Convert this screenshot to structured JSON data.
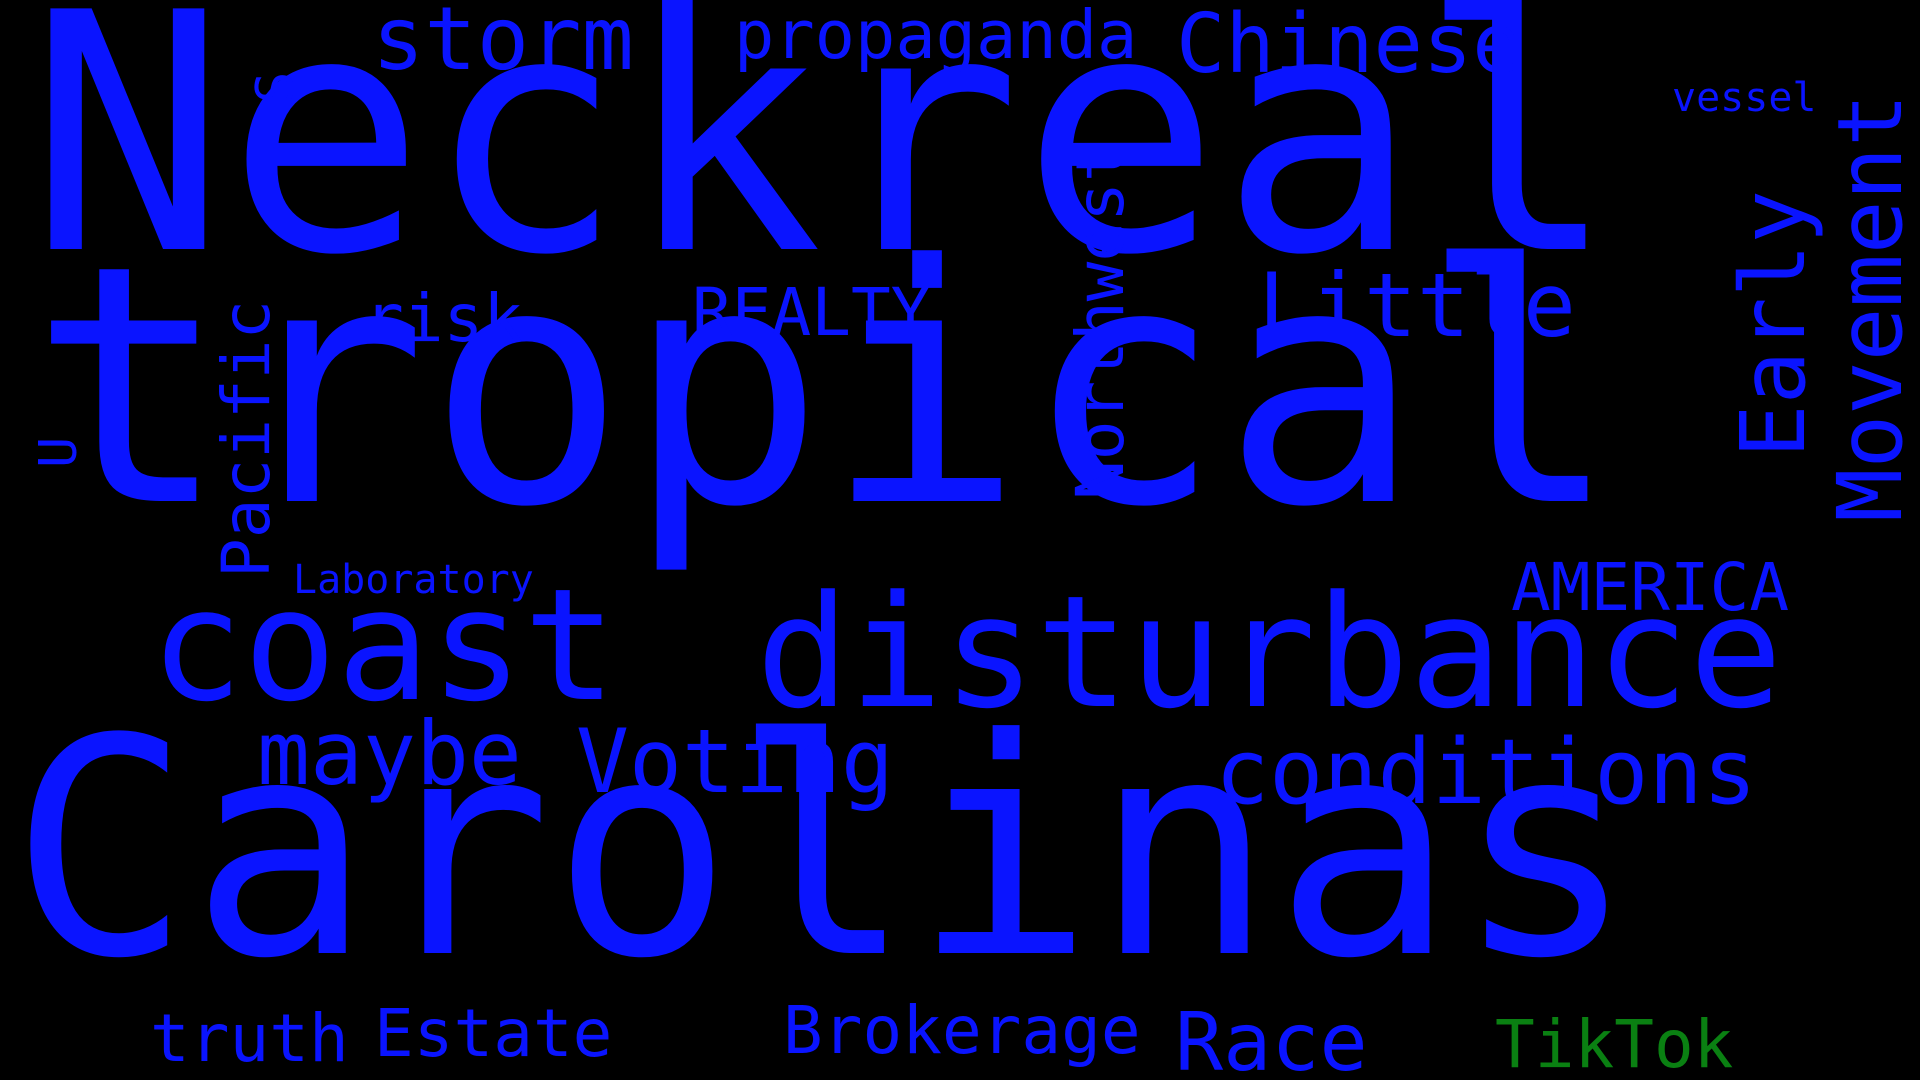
{
  "colors": {
    "background": "#000000",
    "primary_words": "#0a14ff",
    "accent_word": "#0a8012"
  },
  "words": {
    "neckreal": "Neckreal",
    "tropical": "tropical",
    "carolinas": "Carolinas",
    "disturbance": "disturbance",
    "coast": "coast",
    "conditions": "conditions",
    "voting": "Voting",
    "maybe": "maybe",
    "storm": "storm",
    "propaganda": "propaganda",
    "chinese": "Chinese",
    "little": "Little",
    "realty": "REALTY",
    "risk": "risk",
    "america": "AMERICA",
    "laboratory": "Laboratory",
    "truth": "truth",
    "estate": "Estate",
    "brokerage": "Brokerage",
    "race": "Race",
    "tiktok": "TikTok",
    "vessel": "vessel",
    "s": "S",
    "u": "U",
    "pacific": "Pacific",
    "northwest": "Northwest",
    "early": "Early",
    "movement": "Movement"
  }
}
